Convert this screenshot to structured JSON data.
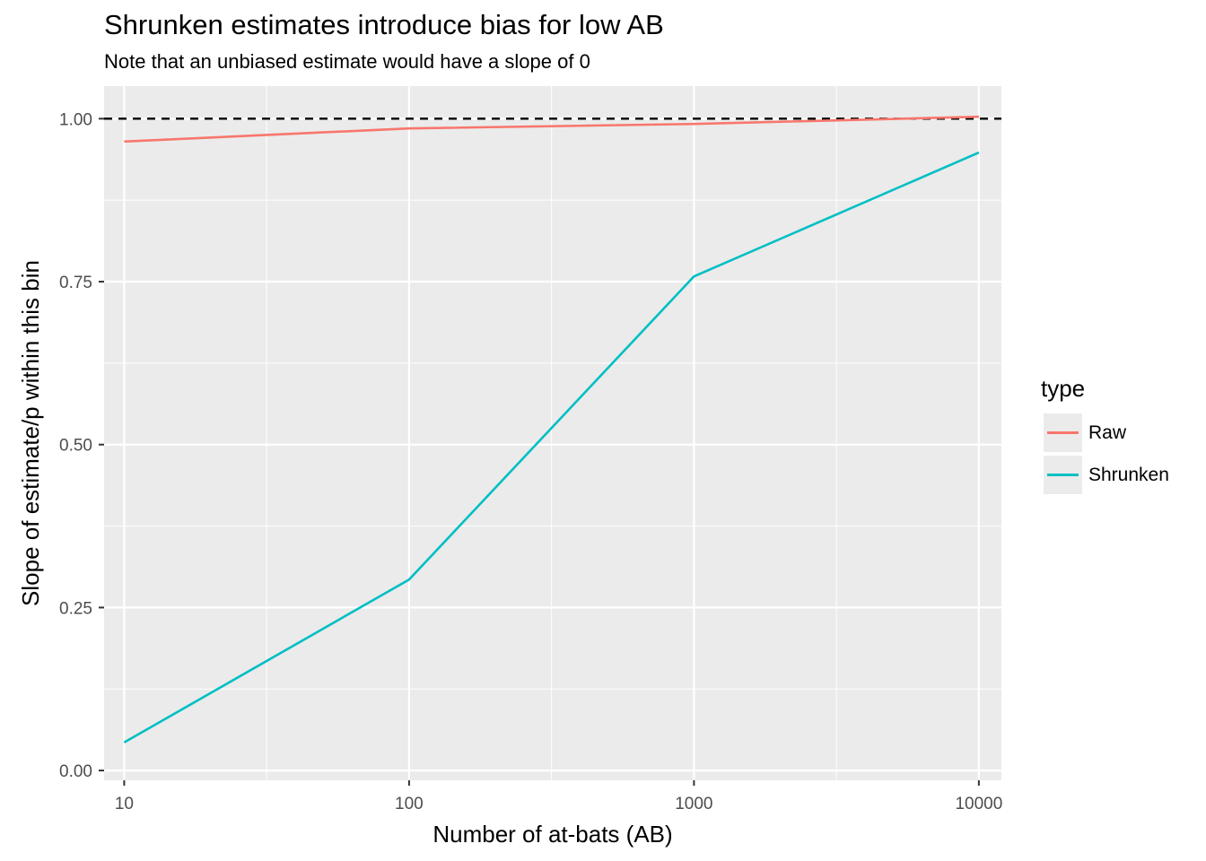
{
  "chart_data": {
    "type": "line",
    "title": "Shrunken estimates introduce bias for low AB",
    "subtitle": "Note that an unbiased estimate would have a slope of 0",
    "xlabel": "Number of at-bats (AB)",
    "ylabel": "Slope of estimate/p within this bin",
    "x_scale": "log10",
    "xlim": [
      8.5,
      12000
    ],
    "ylim": [
      -0.015,
      1.05
    ],
    "x_ticks": [
      10,
      100,
      1000,
      10000
    ],
    "x_tick_labels": [
      "10",
      "100",
      "1000",
      "10000"
    ],
    "y_ticks": [
      0,
      0.25,
      0.5,
      0.75,
      1.0
    ],
    "y_tick_labels": [
      "0.00",
      "0.25",
      "0.50",
      "0.75",
      "1.00"
    ],
    "grid": true,
    "reference_line": {
      "y": 1.0,
      "style": "dashed",
      "color": "#000000"
    },
    "x": [
      10,
      100,
      1000,
      10000
    ],
    "series": [
      {
        "name": "Raw",
        "color": "#F8766D",
        "values": [
          0.965,
          0.985,
          0.992,
          1.003
        ]
      },
      {
        "name": "Shrunken",
        "color": "#00BFC4",
        "values": [
          0.043,
          0.293,
          0.758,
          0.948
        ]
      }
    ],
    "legend": {
      "title": "type",
      "position": "right"
    }
  }
}
